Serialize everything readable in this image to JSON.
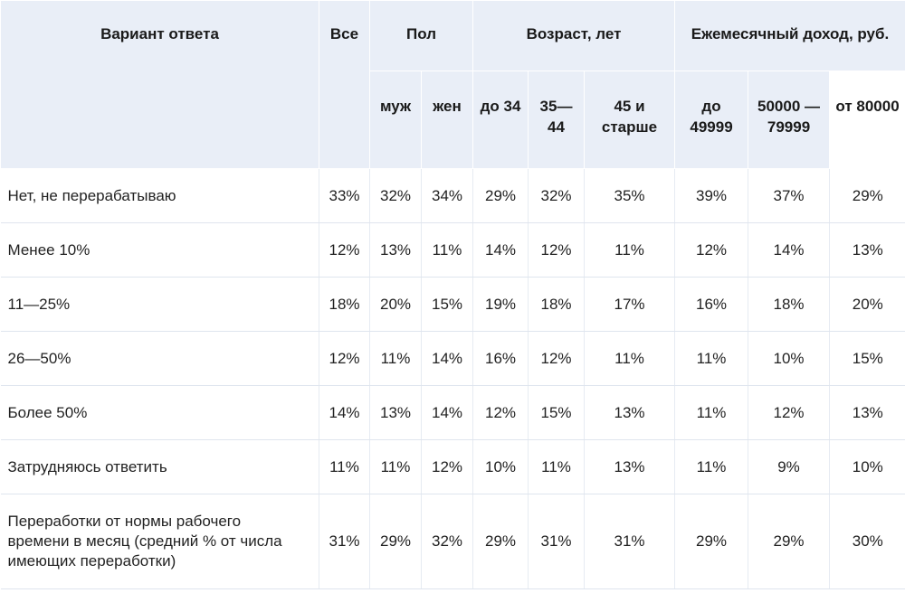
{
  "header": {
    "variant": "Вариант ответа",
    "all": "Все",
    "groups": [
      {
        "label": "Пол",
        "subs": [
          "муж",
          "жен"
        ]
      },
      {
        "label": "Возраст, лет",
        "subs": [
          "до 34",
          "35—44",
          "45 и старше"
        ]
      },
      {
        "label": "Ежемесячный доход, руб.",
        "subs": [
          "до 49999",
          "50000 — 79999",
          "от 80000"
        ]
      }
    ]
  },
  "rows": [
    {
      "label": "Нет, не перерабатываю",
      "values": [
        "33%",
        "32%",
        "34%",
        "29%",
        "32%",
        "35%",
        "39%",
        "37%",
        "29%"
      ]
    },
    {
      "label": "Менее 10%",
      "values": [
        "12%",
        "13%",
        "11%",
        "14%",
        "12%",
        "11%",
        "12%",
        "14%",
        "13%"
      ]
    },
    {
      "label": "11—25%",
      "values": [
        "18%",
        "20%",
        "15%",
        "19%",
        "18%",
        "17%",
        "16%",
        "18%",
        "20%"
      ]
    },
    {
      "label": "26—50%",
      "values": [
        "12%",
        "11%",
        "14%",
        "16%",
        "12%",
        "11%",
        "11%",
        "10%",
        "15%"
      ]
    },
    {
      "label": "Более 50%",
      "values": [
        "14%",
        "13%",
        "14%",
        "12%",
        "15%",
        "13%",
        "11%",
        "12%",
        "13%"
      ]
    },
    {
      "label": "Затрудняюсь ответить",
      "values": [
        "11%",
        "11%",
        "12%",
        "10%",
        "11%",
        "13%",
        "11%",
        "9%",
        "10%"
      ]
    },
    {
      "label": "Переработки от нормы рабочего времени в месяц (средний % от числа имеющих переработки)",
      "values": [
        "31%",
        "29%",
        "32%",
        "29%",
        "31%",
        "31%",
        "29%",
        "29%",
        "30%"
      ]
    }
  ]
}
